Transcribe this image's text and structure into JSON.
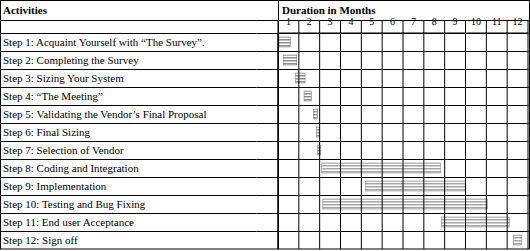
{
  "chart_data": {
    "type": "gantt",
    "x_label": "Duration in Months",
    "y_label": "Activities",
    "categories": [
      "Step 1: Acquaint Yourself with “The Survey”.",
      "Step 2: Completing the Survey",
      "Step 3: Sizing Your System",
      "Step 4: “The Meeting”",
      "Step 5: Validating the Vendor’s Final Proposal",
      "Step 6: Final Sizing",
      "Step 7: Selection of Vendor",
      "Step 8: Coding and Integration",
      "Step 9: Implementation",
      "Step 10: Testing and Bug Fixing",
      "Step 11: End user Acceptance",
      "Step 12: Sign off"
    ],
    "start": [
      0.05,
      0.25,
      0.85,
      1.25,
      1.7,
      1.85,
      1.9,
      2.1,
      4.2,
      2.15,
      7.85,
      11.3
    ],
    "end": [
      0.6,
      0.9,
      1.3,
      1.6,
      1.9,
      2.0,
      2.05,
      7.8,
      9.0,
      10.05,
      11.1,
      11.7
    ],
    "colors": [
      "#8c8c8c",
      "#8c8c8c",
      "#8c8c8c",
      "#8c8c8c",
      "#8c8c8c",
      "#8c8c8c",
      "#8c8c8c",
      "#a6a6a6",
      "#a6a6a6",
      "#a6a6a6",
      "#a6a6a6",
      "#a6a6a6"
    ],
    "xlim": [
      0,
      12
    ],
    "xticks": [
      {
        "value": 0.5,
        "label": "1"
      },
      {
        "value": 1.5,
        "label": "2"
      },
      {
        "value": 2.5,
        "label": "3"
      },
      {
        "value": 3.5,
        "label": "4"
      },
      {
        "value": 4.5,
        "label": "5"
      },
      {
        "value": 5.5,
        "label": "6"
      },
      {
        "value": 6.5,
        "label": "7"
      },
      {
        "value": 7.5,
        "label": "8"
      },
      {
        "value": 8.5,
        "label": "9"
      },
      {
        "value": 9.5,
        "label": "10"
      },
      {
        "value": 10.5,
        "label": "11"
      },
      {
        "value": 11.5,
        "label": "12"
      }
    ],
    "grid": true
  }
}
